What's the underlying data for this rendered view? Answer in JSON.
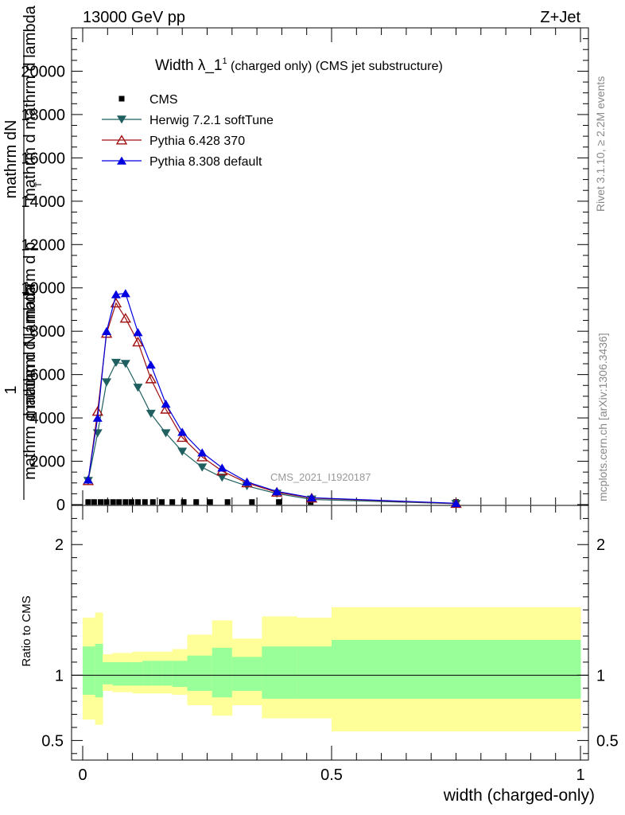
{
  "header": {
    "energy_label": "13000 GeV pp",
    "process_label": "Z+Jet"
  },
  "side_text": {
    "rivet": "Rivet 3.1.10, ≥ 2.2M events",
    "mcplots": "mcplots.cern.ch [arXiv:1306.3436]"
  },
  "analysis_tag": "CMS_2021_I1920187",
  "colors": {
    "herwig": "#1f5f5f",
    "pythia6": "#a01010",
    "pythia8": "#0000e0",
    "band_outer": "#ffff99",
    "band_inner": "#99ff99"
  },
  "chart_data": [
    {
      "type": "line",
      "title_main": "Width λ_1",
      "title_sup": "1",
      "title_rest": " (charged only) (CMS jet substructure)",
      "ylabel_parts": [
        "1",
        "mathrm d N / mathrm d p",
        "T",
        "mathrm dN",
        "mathrm d mathrm d lambda",
        "mathrm d mathrm d lambda"
      ],
      "ylim": [
        0,
        22000
      ],
      "yticks": [
        0,
        2000,
        4000,
        6000,
        8000,
        10000,
        12000,
        14000,
        16000,
        18000,
        20000
      ],
      "xlim": [
        0,
        1
      ],
      "legend_placement": "top-left",
      "series": [
        {
          "name": "CMS",
          "marker": "square",
          "x": [
            0.011,
            0.023,
            0.036,
            0.048,
            0.061,
            0.073,
            0.086,
            0.098,
            0.111,
            0.125,
            0.141,
            0.159,
            0.18,
            0.203,
            0.228,
            0.256,
            0.291,
            0.34,
            0.394,
            0.458,
            0.75
          ],
          "y": [
            120,
            120,
            120,
            120,
            120,
            120,
            120,
            120,
            120,
            120,
            120,
            120,
            120,
            120,
            120,
            120,
            120,
            120,
            120,
            120,
            120
          ]
        },
        {
          "name": "Herwig 7.2.1 softTune",
          "marker": "triangle-down",
          "x": [
            0.011,
            0.03,
            0.048,
            0.067,
            0.086,
            0.111,
            0.137,
            0.167,
            0.2,
            0.24,
            0.28,
            0.33,
            0.39,
            0.46,
            0.75
          ],
          "y": [
            1100,
            3300,
            5650,
            6550,
            6500,
            5400,
            4200,
            3300,
            2450,
            1720,
            1250,
            860,
            510,
            240,
            40
          ]
        },
        {
          "name": "Pythia 6.428 370",
          "marker": "triangle-up-open",
          "x": [
            0.011,
            0.03,
            0.048,
            0.067,
            0.086,
            0.111,
            0.137,
            0.167,
            0.2,
            0.24,
            0.28,
            0.33,
            0.39,
            0.46,
            0.75
          ],
          "y": [
            1100,
            4300,
            7900,
            9300,
            8600,
            7500,
            5800,
            4400,
            3100,
            2200,
            1550,
            1000,
            570,
            300,
            50
          ]
        },
        {
          "name": "Pythia 8.308 default",
          "marker": "triangle-up",
          "x": [
            0.011,
            0.03,
            0.048,
            0.067,
            0.086,
            0.111,
            0.137,
            0.167,
            0.2,
            0.24,
            0.28,
            0.33,
            0.39,
            0.46,
            0.75
          ],
          "y": [
            1150,
            4000,
            8000,
            9700,
            9750,
            7950,
            6450,
            4650,
            3350,
            2400,
            1700,
            1050,
            610,
            320,
            60
          ]
        }
      ]
    },
    {
      "type": "area",
      "ylabel": "Ratio to CMS",
      "xlabel": "width (charged-only)",
      "ylim": [
        0.35,
        2.3
      ],
      "yticks": [
        0.5,
        1,
        2
      ],
      "xticks": [
        0,
        0.5,
        1
      ],
      "xlim": [
        0,
        1
      ],
      "reference_line": 1,
      "bins": [
        0,
        0.025,
        0.04,
        0.06,
        0.08,
        0.1,
        0.12,
        0.14,
        0.16,
        0.18,
        0.21,
        0.26,
        0.3,
        0.36,
        0.43,
        0.5,
        1.0
      ],
      "band_outer_low": [
        0.66,
        0.62,
        0.88,
        0.87,
        0.87,
        0.86,
        0.86,
        0.86,
        0.86,
        0.85,
        0.77,
        0.69,
        0.77,
        0.67,
        0.67,
        0.57,
        0.57
      ],
      "band_outer_high": [
        1.44,
        1.48,
        1.16,
        1.17,
        1.17,
        1.18,
        1.18,
        1.18,
        1.18,
        1.2,
        1.31,
        1.42,
        1.28,
        1.45,
        1.44,
        1.52,
        1.52
      ],
      "band_inner_low": [
        0.85,
        0.83,
        0.93,
        0.92,
        0.92,
        0.92,
        0.92,
        0.92,
        0.92,
        0.91,
        0.88,
        0.83,
        0.88,
        0.82,
        0.82,
        0.82,
        0.82
      ],
      "band_inner_high": [
        1.22,
        1.24,
        1.1,
        1.1,
        1.1,
        1.1,
        1.11,
        1.11,
        1.11,
        1.11,
        1.15,
        1.21,
        1.14,
        1.22,
        1.22,
        1.27,
        1.27
      ]
    }
  ]
}
